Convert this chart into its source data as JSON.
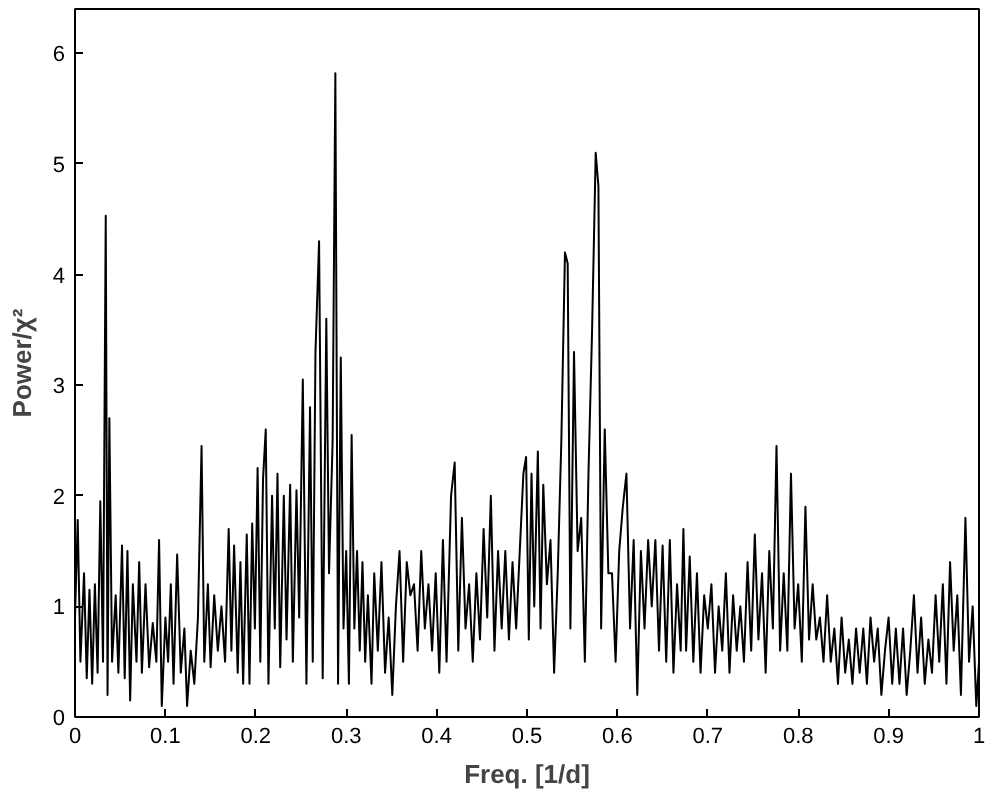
{
  "chart_data": {
    "type": "line",
    "xlabel": "Freq. [1/d]",
    "ylabel": "Power/χ²",
    "xlim": [
      0,
      1
    ],
    "ylim": [
      0,
      6.4
    ],
    "xticks": [
      0,
      0.1,
      0.2,
      0.3,
      0.4,
      0.5,
      0.6,
      0.7,
      0.8,
      0.9,
      1
    ],
    "yticks": [
      0,
      1,
      2,
      3,
      4,
      5,
      6
    ],
    "marker": "none",
    "line_style": "solid",
    "series": [
      {
        "color": "#000000",
        "x": [
          0.0,
          0.003,
          0.006,
          0.01,
          0.013,
          0.016,
          0.019,
          0.022,
          0.025,
          0.028,
          0.031,
          0.034,
          0.036,
          0.038,
          0.041,
          0.045,
          0.048,
          0.052,
          0.055,
          0.058,
          0.061,
          0.064,
          0.068,
          0.071,
          0.074,
          0.078,
          0.082,
          0.086,
          0.09,
          0.093,
          0.096,
          0.1,
          0.103,
          0.106,
          0.109,
          0.113,
          0.117,
          0.121,
          0.124,
          0.128,
          0.132,
          0.136,
          0.14,
          0.143,
          0.147,
          0.15,
          0.154,
          0.158,
          0.162,
          0.166,
          0.17,
          0.173,
          0.176,
          0.18,
          0.183,
          0.186,
          0.19,
          0.193,
          0.196,
          0.199,
          0.202,
          0.205,
          0.208,
          0.211,
          0.214,
          0.218,
          0.221,
          0.224,
          0.227,
          0.231,
          0.234,
          0.238,
          0.241,
          0.245,
          0.248,
          0.252,
          0.256,
          0.26,
          0.263,
          0.266,
          0.27,
          0.274,
          0.278,
          0.281,
          0.285,
          0.288,
          0.291,
          0.294,
          0.297,
          0.3,
          0.303,
          0.306,
          0.309,
          0.312,
          0.315,
          0.318,
          0.321,
          0.324,
          0.328,
          0.331,
          0.335,
          0.339,
          0.343,
          0.347,
          0.351,
          0.355,
          0.359,
          0.363,
          0.367,
          0.371,
          0.375,
          0.379,
          0.383,
          0.387,
          0.391,
          0.395,
          0.399,
          0.403,
          0.407,
          0.411,
          0.416,
          0.42,
          0.424,
          0.428,
          0.432,
          0.436,
          0.44,
          0.444,
          0.448,
          0.452,
          0.456,
          0.46,
          0.464,
          0.468,
          0.472,
          0.476,
          0.48,
          0.484,
          0.488,
          0.492,
          0.496,
          0.499,
          0.502,
          0.505,
          0.508,
          0.512,
          0.515,
          0.518,
          0.522,
          0.526,
          0.53,
          0.534,
          0.538,
          0.542,
          0.545,
          0.548,
          0.552,
          0.556,
          0.56,
          0.564,
          0.568,
          0.572,
          0.576,
          0.579,
          0.582,
          0.586,
          0.59,
          0.594,
          0.598,
          0.602,
          0.606,
          0.61,
          0.614,
          0.618,
          0.622,
          0.626,
          0.63,
          0.634,
          0.638,
          0.642,
          0.646,
          0.65,
          0.654,
          0.658,
          0.662,
          0.666,
          0.67,
          0.673,
          0.676,
          0.68,
          0.684,
          0.688,
          0.692,
          0.696,
          0.7,
          0.704,
          0.708,
          0.712,
          0.716,
          0.72,
          0.724,
          0.728,
          0.732,
          0.736,
          0.74,
          0.744,
          0.748,
          0.752,
          0.756,
          0.76,
          0.764,
          0.768,
          0.772,
          0.776,
          0.78,
          0.784,
          0.788,
          0.792,
          0.796,
          0.8,
          0.804,
          0.808,
          0.812,
          0.816,
          0.82,
          0.824,
          0.828,
          0.832,
          0.836,
          0.84,
          0.844,
          0.848,
          0.852,
          0.856,
          0.86,
          0.864,
          0.868,
          0.872,
          0.876,
          0.88,
          0.884,
          0.888,
          0.892,
          0.896,
          0.9,
          0.904,
          0.908,
          0.912,
          0.916,
          0.92,
          0.924,
          0.928,
          0.932,
          0.936,
          0.94,
          0.944,
          0.948,
          0.952,
          0.956,
          0.96,
          0.964,
          0.968,
          0.972,
          0.976,
          0.98,
          0.985,
          0.989,
          0.993,
          0.997,
          1.0
        ],
        "values": [
          0.9,
          1.78,
          0.5,
          1.3,
          0.35,
          1.15,
          0.3,
          1.2,
          0.4,
          1.95,
          0.5,
          4.53,
          0.2,
          2.7,
          0.5,
          1.1,
          0.4,
          1.55,
          0.35,
          1.5,
          0.15,
          1.2,
          0.5,
          1.4,
          0.4,
          1.2,
          0.45,
          0.85,
          0.5,
          1.6,
          0.1,
          0.9,
          0.5,
          1.2,
          0.3,
          1.47,
          0.4,
          0.8,
          0.1,
          0.6,
          0.3,
          0.9,
          2.45,
          0.5,
          1.2,
          0.45,
          1.1,
          0.6,
          1.0,
          0.5,
          1.7,
          0.6,
          1.55,
          0.4,
          1.4,
          0.3,
          1.65,
          0.3,
          1.75,
          0.8,
          2.25,
          0.5,
          2.15,
          2.6,
          0.3,
          2.0,
          0.8,
          2.2,
          0.45,
          2.0,
          0.7,
          2.1,
          0.5,
          2.05,
          0.9,
          3.05,
          0.3,
          2.8,
          0.5,
          3.3,
          4.3,
          0.35,
          3.6,
          1.3,
          2.5,
          5.82,
          0.3,
          3.25,
          0.8,
          1.5,
          0.3,
          2.55,
          0.8,
          1.5,
          0.6,
          1.4,
          0.5,
          1.1,
          0.3,
          1.3,
          0.6,
          1.4,
          0.4,
          0.9,
          0.2,
          1.0,
          1.5,
          0.5,
          1.4,
          1.1,
          1.2,
          0.6,
          1.5,
          0.8,
          1.2,
          0.6,
          1.3,
          0.4,
          1.6,
          0.5,
          2.0,
          2.3,
          0.6,
          1.8,
          0.8,
          1.2,
          0.5,
          1.3,
          0.7,
          1.7,
          0.9,
          2.0,
          0.6,
          1.5,
          0.8,
          1.5,
          0.7,
          1.4,
          0.8,
          1.5,
          2.2,
          2.35,
          0.7,
          2.2,
          1.0,
          2.4,
          0.8,
          2.1,
          1.2,
          1.6,
          0.4,
          1.3,
          2.5,
          4.2,
          4.1,
          0.8,
          3.3,
          1.5,
          1.8,
          0.5,
          2.2,
          3.5,
          5.1,
          4.8,
          0.8,
          2.6,
          1.3,
          1.3,
          0.5,
          1.5,
          1.9,
          2.2,
          0.8,
          1.6,
          0.2,
          1.5,
          0.8,
          1.6,
          1.0,
          1.6,
          0.6,
          1.55,
          0.5,
          1.6,
          0.4,
          1.2,
          0.6,
          1.7,
          0.6,
          1.45,
          0.5,
          1.3,
          0.4,
          1.1,
          0.8,
          1.2,
          0.4,
          1.0,
          0.6,
          1.3,
          0.4,
          1.1,
          0.6,
          1.0,
          0.5,
          1.4,
          0.6,
          1.65,
          0.7,
          1.3,
          0.4,
          1.5,
          0.8,
          2.45,
          0.6,
          1.3,
          0.6,
          2.2,
          0.8,
          1.2,
          0.5,
          1.9,
          0.7,
          1.2,
          0.7,
          0.9,
          0.5,
          1.1,
          0.5,
          0.8,
          0.3,
          0.9,
          0.4,
          0.7,
          0.3,
          0.8,
          0.4,
          0.8,
          0.3,
          0.9,
          0.5,
          0.8,
          0.2,
          0.6,
          0.9,
          0.3,
          0.8,
          0.3,
          0.8,
          0.2,
          0.6,
          1.1,
          0.4,
          0.9,
          0.3,
          0.7,
          0.4,
          1.1,
          0.5,
          1.2,
          0.3,
          1.4,
          0.6,
          1.1,
          0.2,
          1.8,
          0.5,
          1.0,
          0.1,
          0.5
        ]
      }
    ]
  }
}
